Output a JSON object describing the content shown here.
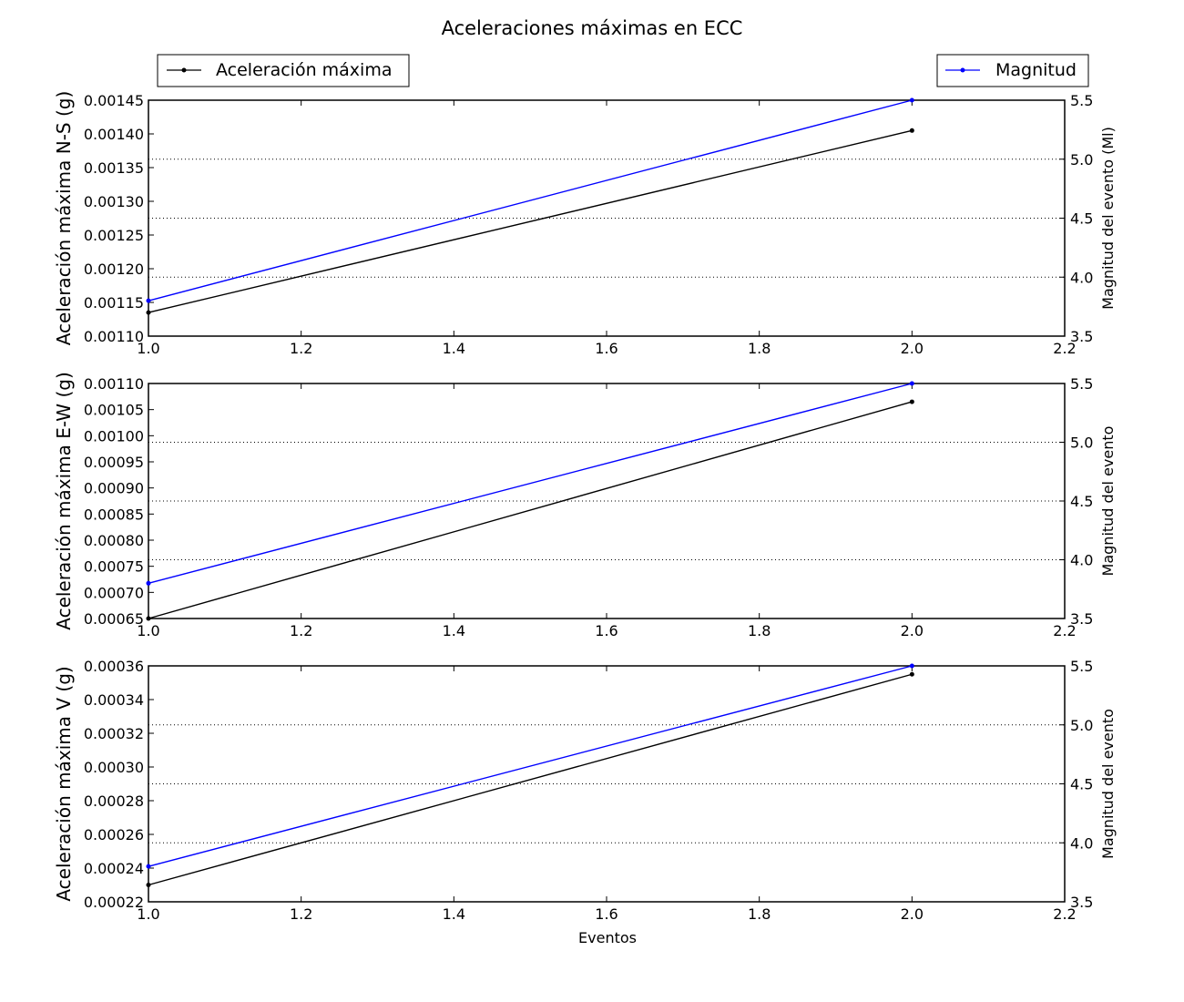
{
  "figure_title": "Aceleraciones máximas en ECC",
  "legend": {
    "left_label": "Aceleración máxima",
    "right_label": "Magnitud"
  },
  "colors": {
    "accel": "#000000",
    "magnitude": "#0000ff",
    "grid": "#000000"
  },
  "chart_data": [
    {
      "type": "line",
      "x": [
        1.0,
        2.0
      ],
      "xlim": [
        1.0,
        2.2
      ],
      "xticks": [
        "1.0",
        "1.2",
        "1.4",
        "1.6",
        "1.8",
        "2.0",
        "2.2"
      ],
      "xlabel": "",
      "ylabel": "Aceleración máxima N-S (g)",
      "ylim": [
        0.0011,
        0.00145
      ],
      "yticks": [
        "0.00110",
        "0.00115",
        "0.00120",
        "0.00125",
        "0.00130",
        "0.00135",
        "0.00140",
        "0.00145"
      ],
      "ylabel_right": "Magnitud del evento (Ml)",
      "ylim_right": [
        3.5,
        5.5
      ],
      "yticks_right": [
        "3.5",
        "4.0",
        "4.5",
        "5.0",
        "5.5"
      ],
      "grid": "dotted horizontal at right-axis ticks",
      "series": [
        {
          "name": "Aceleración máxima",
          "axis": "left",
          "values": [
            0.001135,
            0.001405
          ]
        },
        {
          "name": "Magnitud",
          "axis": "right",
          "values": [
            3.8,
            5.5
          ]
        }
      ]
    },
    {
      "type": "line",
      "x": [
        1.0,
        2.0
      ],
      "xlim": [
        1.0,
        2.2
      ],
      "xticks": [
        "1.0",
        "1.2",
        "1.4",
        "1.6",
        "1.8",
        "2.0",
        "2.2"
      ],
      "xlabel": "",
      "ylabel": "Aceleración máxima E-W (g)",
      "ylim": [
        0.00065,
        0.0011
      ],
      "yticks": [
        "0.00065",
        "0.00070",
        "0.00075",
        "0.00080",
        "0.00085",
        "0.00090",
        "0.00095",
        "0.00100",
        "0.00105",
        "0.00110"
      ],
      "ylabel_right": "Magnitud del evento",
      "ylim_right": [
        3.5,
        5.5
      ],
      "yticks_right": [
        "3.5",
        "4.0",
        "4.5",
        "5.0",
        "5.5"
      ],
      "grid": "dotted horizontal at right-axis ticks",
      "series": [
        {
          "name": "Aceleración máxima",
          "axis": "left",
          "values": [
            0.00065,
            0.001065
          ]
        },
        {
          "name": "Magnitud",
          "axis": "right",
          "values": [
            3.8,
            5.5
          ]
        }
      ]
    },
    {
      "type": "line",
      "x": [
        1.0,
        2.0
      ],
      "xlim": [
        1.0,
        2.2
      ],
      "xticks": [
        "1.0",
        "1.2",
        "1.4",
        "1.6",
        "1.8",
        "2.0",
        "2.2"
      ],
      "xlabel": "Eventos",
      "ylabel": "Aceleración máxima V (g)",
      "ylim": [
        0.00022,
        0.00036
      ],
      "yticks": [
        "0.00022",
        "0.00024",
        "0.00026",
        "0.00028",
        "0.00030",
        "0.00032",
        "0.00034",
        "0.00036"
      ],
      "ylabel_right": "Magnitud del evento",
      "ylim_right": [
        3.5,
        5.5
      ],
      "yticks_right": [
        "3.5",
        "4.0",
        "4.5",
        "5.0",
        "5.5"
      ],
      "grid": "dotted horizontal at right-axis ticks",
      "series": [
        {
          "name": "Aceleración máxima",
          "axis": "left",
          "values": [
            0.00023,
            0.000355
          ]
        },
        {
          "name": "Magnitud",
          "axis": "right",
          "values": [
            3.8,
            5.5
          ]
        }
      ]
    }
  ]
}
